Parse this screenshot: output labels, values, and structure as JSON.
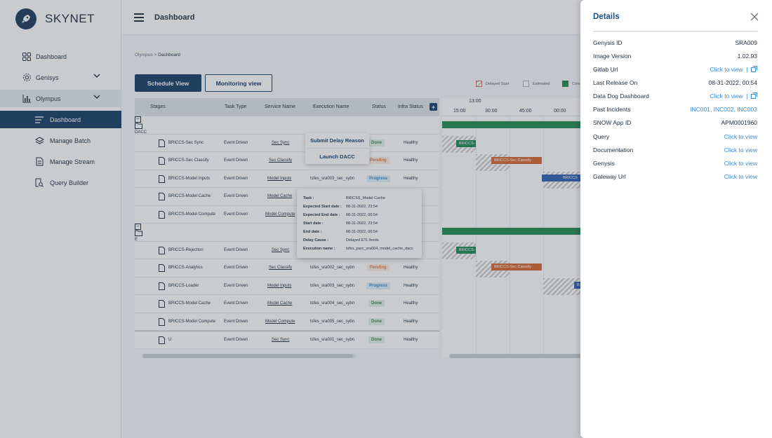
{
  "brand": {
    "name": "SKYNET"
  },
  "sidebar": {
    "items": [
      {
        "label": "Dashboard",
        "icon": "grid-icon"
      },
      {
        "label": "Genisys",
        "icon": "cog-network-icon"
      },
      {
        "label": "Olympus",
        "icon": "bar-chart-icon"
      }
    ],
    "subitems": [
      {
        "label": "Dashboard",
        "icon": "list-icon"
      },
      {
        "label": "Manage Batch",
        "icon": "layers-icon"
      },
      {
        "label": "Manage Stream",
        "icon": "document-icon"
      },
      {
        "label": "Query Builder",
        "icon": "query-icon"
      }
    ]
  },
  "header": {
    "title": "Dashboard"
  },
  "breadcrumb": {
    "root": "Olympus",
    "sep": ">",
    "current": "Dashboard"
  },
  "views": {
    "schedule": "Schedule View",
    "monitoring": "Monitoring view"
  },
  "legend": {
    "delayed": "Delayed Start",
    "estimated": "Estimated",
    "completed": "Com"
  },
  "colors": {
    "primary": "#173d63",
    "done": "#2f8a4e",
    "pending": "#e07b39",
    "progress": "#3a8bc8",
    "link": "#3a8ad6",
    "bar_green": "#1e8a4f",
    "bar_orange": "#d9692f",
    "bar_blue": "#2f5fb5"
  },
  "table": {
    "headers": {
      "stages": "Stages",
      "task_type": "Task Type",
      "service": "Service Name",
      "execution": "Execution Name",
      "status": "Status",
      "infra": "Infra Status"
    },
    "groups": [
      {
        "name": "DACC",
        "rows": [
          {
            "stage": "BRICCS-Sec Sync",
            "task": "Event Driven",
            "service": "Sec Sync",
            "execution": "",
            "status": "Done",
            "infra": "Healthy"
          },
          {
            "stage": "BRICCS-Sec Classify",
            "task": "Event Driven",
            "service": "Sec Classify",
            "execution": "",
            "status": "Pending",
            "infra": "Healthy"
          },
          {
            "stage": "BRICCS-Model Inputs",
            "task": "Event Driven",
            "service": "Model Inputs",
            "execution": "tsfes_sra003_sec_sybn",
            "status": "Progress",
            "infra": "Healthy"
          },
          {
            "stage": "BRICCS-Model Cache",
            "task": "Event Driven",
            "service": "Model Cache",
            "execution": "",
            "status": "",
            "infra": ""
          },
          {
            "stage": "BRICCS-Model Compute",
            "task": "Event Driven",
            "service": "Model Compute",
            "execution": "",
            "status": "",
            "infra": ""
          }
        ]
      },
      {
        "name": "E",
        "rows": [
          {
            "stage": "BRICCS-Rejection",
            "task": "Event Driven",
            "service": "Sec Sync",
            "execution": "",
            "status": "",
            "infra": ""
          },
          {
            "stage": "BRICCS-Analytics",
            "task": "Event Driven",
            "service": "Sec Classify",
            "execution": "tsfes_sra002_sec_sybn",
            "status": "Pending",
            "infra": "Healthy"
          },
          {
            "stage": "BRICCS-Loader",
            "task": "Event Driven",
            "service": "Model Inputs",
            "execution": "tsfes_sra003_sec_sybn",
            "status": "Progress",
            "infra": "Healthy"
          },
          {
            "stage": "BRICCS-Model Cache",
            "task": "Event Driven",
            "service": "Model Cache",
            "execution": "tsfes_sra004_sec_sybn",
            "status": "Done",
            "infra": "Healthy"
          },
          {
            "stage": "BRICCS-Model Compute",
            "task": "Event Driven",
            "service": "Model Compute",
            "execution": "tsfes_sra005_sec_sybn",
            "status": "Done",
            "infra": "Healthy"
          }
        ]
      }
    ],
    "last_row": {
      "stage": "U",
      "task": "Event Driven",
      "service": "Sec Sync",
      "execution": "tsfes_sra001_sec_sybn",
      "status": "Done",
      "infra": "Healthy"
    }
  },
  "timeline": {
    "hour": "13:00",
    "ticks": [
      "15:00",
      "30:00",
      "45:00",
      "00:00"
    ],
    "bars": {
      "sec_sync": "BRICCS-",
      "sec_classify": "BRICCS-Sec Classify",
      "model_inputs": "BRICCS",
      "rejection": "BRICCS-",
      "analytics": "BRICCS-Sec Classify",
      "loader": "B"
    }
  },
  "context_menu": {
    "items": [
      "Submit Delay Reason",
      "Launch DACC"
    ]
  },
  "tooltip": {
    "rows": [
      {
        "k": "Task :",
        "v": "BRICSS_Model Cache"
      },
      {
        "k": "Expected Start date :",
        "v": "08-31-2022, 23:54"
      },
      {
        "k": "Expected End date :",
        "v": "08-31-2022, 00:54"
      },
      {
        "k": "Start date :",
        "v": "08-31-2022, 23:54"
      },
      {
        "k": "End date :",
        "v": "08-31-2022, 00:54"
      },
      {
        "k": "Delay Cause :",
        "v": "Delayed ETL feeds"
      },
      {
        "k": "Execution name :",
        "v": "tsfes_parc_sra004_model_cache_dacc"
      }
    ]
  },
  "details": {
    "title": "Details",
    "rows": [
      {
        "k": "Genysis ID",
        "v": "SRA009"
      },
      {
        "k": "Image Version",
        "v": "1.02.93"
      },
      {
        "k": "Gitlab Url",
        "v": "Click to view",
        "copy": true
      },
      {
        "k": "Last Release On",
        "v": "08-31-2022, 00:54"
      },
      {
        "k": "Data Dog Dashboard",
        "v": "Click to view",
        "copy": true
      },
      {
        "k": "Past Incidents",
        "v": "INC001, INC002, INC003"
      },
      {
        "k": "SNOW App ID",
        "v": "APM0001960"
      },
      {
        "k": "Query",
        "v": "Click to view"
      },
      {
        "k": "Documentation",
        "v": "Click to view"
      },
      {
        "k": "Genysis",
        "v": "Click to view"
      },
      {
        "k": "Gateway Url",
        "v": "Click to view"
      }
    ]
  }
}
